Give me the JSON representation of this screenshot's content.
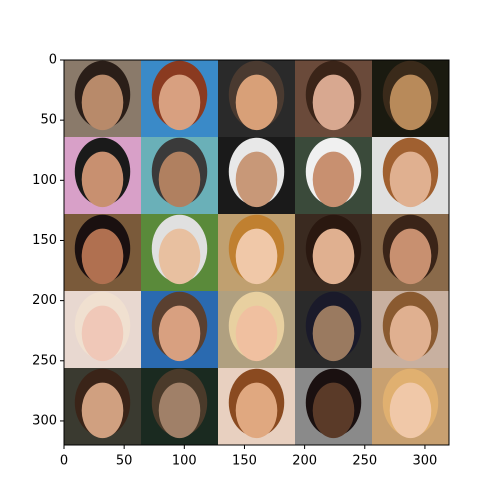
{
  "image_axes": {
    "xlim": [
      0,
      320
    ],
    "ylim": [
      0,
      320
    ],
    "xticks": [
      0,
      50,
      100,
      150,
      200,
      250,
      300
    ],
    "yticks": [
      0,
      50,
      100,
      150,
      200,
      250,
      300
    ],
    "inverted_y": true
  }
}
